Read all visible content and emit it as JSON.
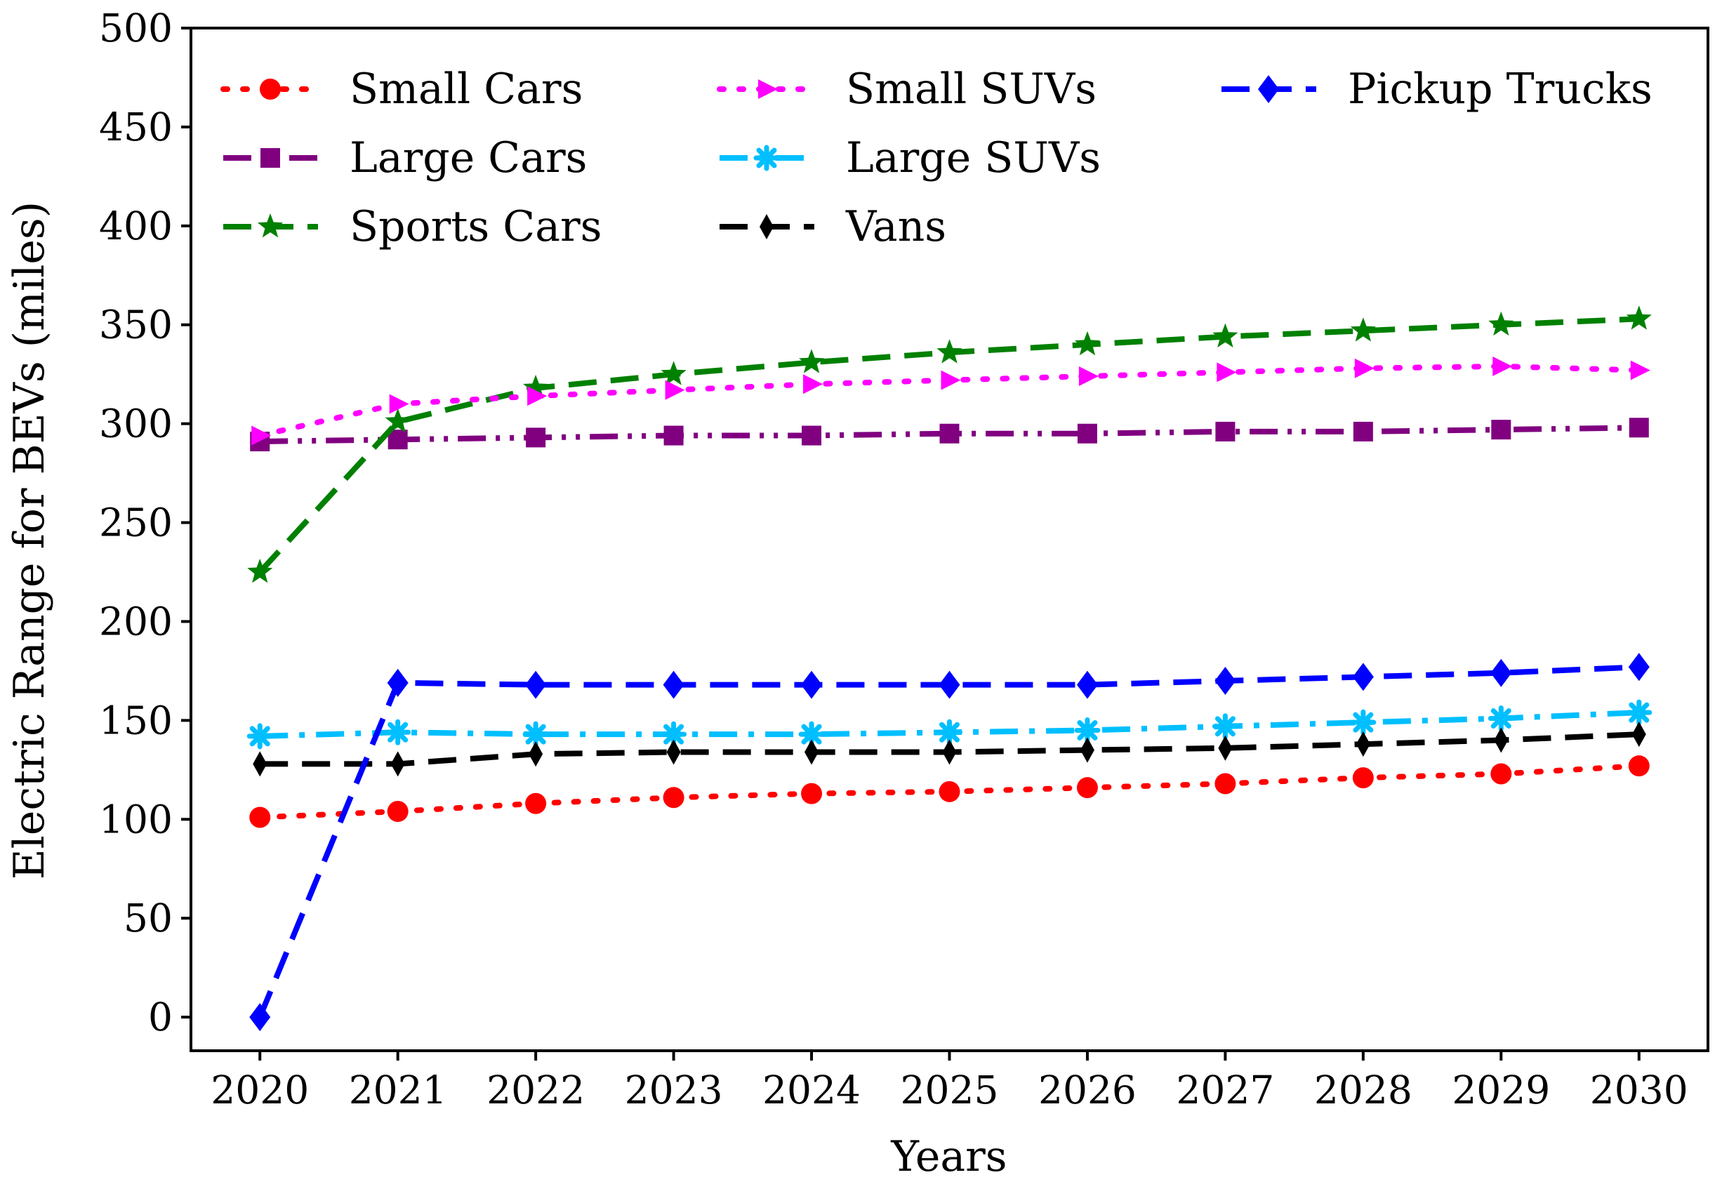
{
  "chart_data": {
    "type": "line",
    "title": "",
    "xlabel": "Years",
    "ylabel": "Electric Range for BEVs (miles)",
    "x": [
      2020,
      2021,
      2022,
      2023,
      2024,
      2025,
      2026,
      2027,
      2028,
      2029,
      2030
    ],
    "xlim": [
      2019.5,
      2030.5
    ],
    "ylim": [
      -17,
      500
    ],
    "yticks": [
      0,
      50,
      100,
      150,
      200,
      250,
      300,
      350,
      400,
      450,
      500
    ],
    "grid": false,
    "legend_position": "top",
    "series": [
      {
        "name": "Small Cars",
        "color": "#ff0000",
        "marker": "circle",
        "dash": "dotted",
        "values": [
          101,
          104,
          108,
          111,
          113,
          114,
          116,
          118,
          121,
          123,
          127
        ]
      },
      {
        "name": "Large Cars",
        "color": "#800080",
        "marker": "square",
        "dash": "dash-dot-dot",
        "values": [
          291,
          292,
          293,
          294,
          294,
          295,
          295,
          296,
          296,
          297,
          298
        ]
      },
      {
        "name": "Sports Cars",
        "color": "#008000",
        "marker": "star",
        "dash": "dashed",
        "values": [
          225,
          301,
          318,
          325,
          331,
          336,
          340,
          344,
          347,
          350,
          353
        ]
      },
      {
        "name": "Small SUVs",
        "color": "#ff00ff",
        "marker": "triangle-right",
        "dash": "dotted",
        "values": [
          294,
          310,
          314,
          317,
          320,
          322,
          324,
          326,
          328,
          329,
          327
        ]
      },
      {
        "name": "Large SUVs",
        "color": "#00bfff",
        "marker": "x-star",
        "dash": "dash-dot",
        "values": [
          142,
          144,
          143,
          143,
          143,
          144,
          145,
          147,
          149,
          151,
          154
        ]
      },
      {
        "name": "Vans",
        "color": "#000000",
        "marker": "thin-diamond",
        "dash": "dashed",
        "values": [
          128,
          128,
          133,
          134,
          134,
          134,
          135,
          136,
          138,
          140,
          143
        ]
      },
      {
        "name": "Pickup Trucks",
        "color": "#0000ff",
        "marker": "diamond",
        "dash": "dashed",
        "values": [
          0,
          169,
          168,
          168,
          168,
          168,
          168,
          170,
          172,
          174,
          177
        ]
      }
    ]
  }
}
